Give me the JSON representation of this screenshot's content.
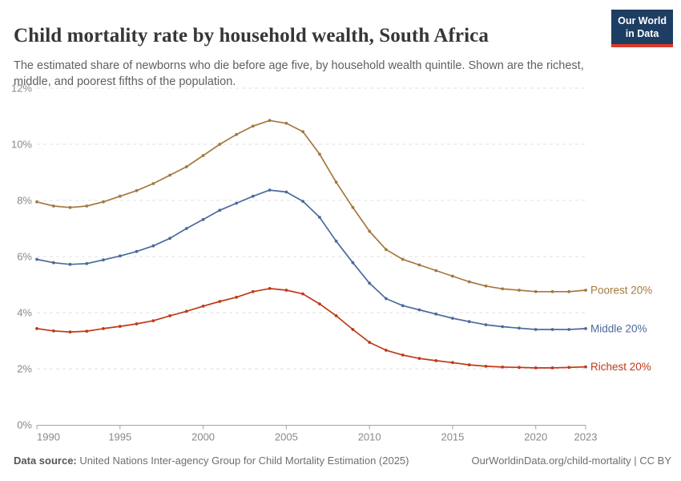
{
  "header": {
    "title": "Child mortality rate by household wealth, South Africa",
    "subtitle": "The estimated share of newborns who die before age five, by household wealth quintile. Shown are the richest, middle, and poorest fifths of the population."
  },
  "branding": {
    "logo_line1": "Our World",
    "logo_line2": "in Data",
    "bg_color": "#1d3d63",
    "stripe_color": "#d93a2b"
  },
  "footer": {
    "datasource_label": "Data source:",
    "datasource_text": " United Nations Inter-agency Group for Child Mortality Estimation (2025)",
    "link_text": "OurWorldinData.org/child-mortality | CC BY"
  },
  "chart_data": {
    "type": "line",
    "title": "Child mortality rate by household wealth, South Africa",
    "xlabel": "",
    "ylabel": "",
    "x": [
      1990,
      1991,
      1992,
      1993,
      1994,
      1995,
      1996,
      1997,
      1998,
      1999,
      2000,
      2001,
      2002,
      2003,
      2004,
      2005,
      2006,
      2007,
      2008,
      2009,
      2010,
      2011,
      2012,
      2013,
      2014,
      2015,
      2016,
      2017,
      2018,
      2019,
      2020,
      2021,
      2022,
      2023
    ],
    "series": [
      {
        "name": "Poorest 20%",
        "color": "#a2793f",
        "values": [
          7.95,
          7.8,
          7.75,
          7.8,
          7.95,
          8.15,
          8.35,
          8.6,
          8.9,
          9.2,
          9.6,
          10.0,
          10.35,
          10.65,
          10.85,
          10.75,
          10.45,
          9.65,
          8.65,
          7.75,
          6.9,
          6.25,
          5.9,
          5.7,
          5.5,
          5.3,
          5.1,
          4.95,
          4.85,
          4.8,
          4.75,
          4.75,
          4.75,
          4.8
        ]
      },
      {
        "name": "Middle 20%",
        "color": "#4c6a9c",
        "values": [
          5.9,
          5.78,
          5.72,
          5.75,
          5.88,
          6.02,
          6.18,
          6.38,
          6.65,
          7.0,
          7.32,
          7.65,
          7.9,
          8.15,
          8.37,
          8.3,
          7.97,
          7.4,
          6.55,
          5.78,
          5.05,
          4.5,
          4.25,
          4.1,
          3.95,
          3.8,
          3.68,
          3.57,
          3.5,
          3.45,
          3.4,
          3.4,
          3.4,
          3.43
        ]
      },
      {
        "name": "Richest 20%",
        "color": "#bf3a17",
        "values": [
          3.43,
          3.35,
          3.31,
          3.34,
          3.43,
          3.51,
          3.6,
          3.71,
          3.89,
          4.05,
          4.23,
          4.4,
          4.55,
          4.75,
          4.86,
          4.8,
          4.67,
          4.31,
          3.89,
          3.4,
          2.94,
          2.66,
          2.49,
          2.37,
          2.29,
          2.22,
          2.14,
          2.09,
          2.06,
          2.05,
          2.03,
          2.03,
          2.05,
          2.07
        ]
      }
    ],
    "ylim": [
      0,
      12
    ],
    "yticks": [
      0,
      2,
      4,
      6,
      8,
      10,
      12
    ],
    "ytick_suffix": "%",
    "xticks": [
      1990,
      1995,
      2000,
      2005,
      2010,
      2015,
      2020,
      2023
    ],
    "grid": "horizontal-dashed",
    "legend_position": "right-of-line-end",
    "axis_color": "#a3a3a3",
    "grid_color": "#e0e0e0",
    "tick_label_color": "#898989"
  }
}
